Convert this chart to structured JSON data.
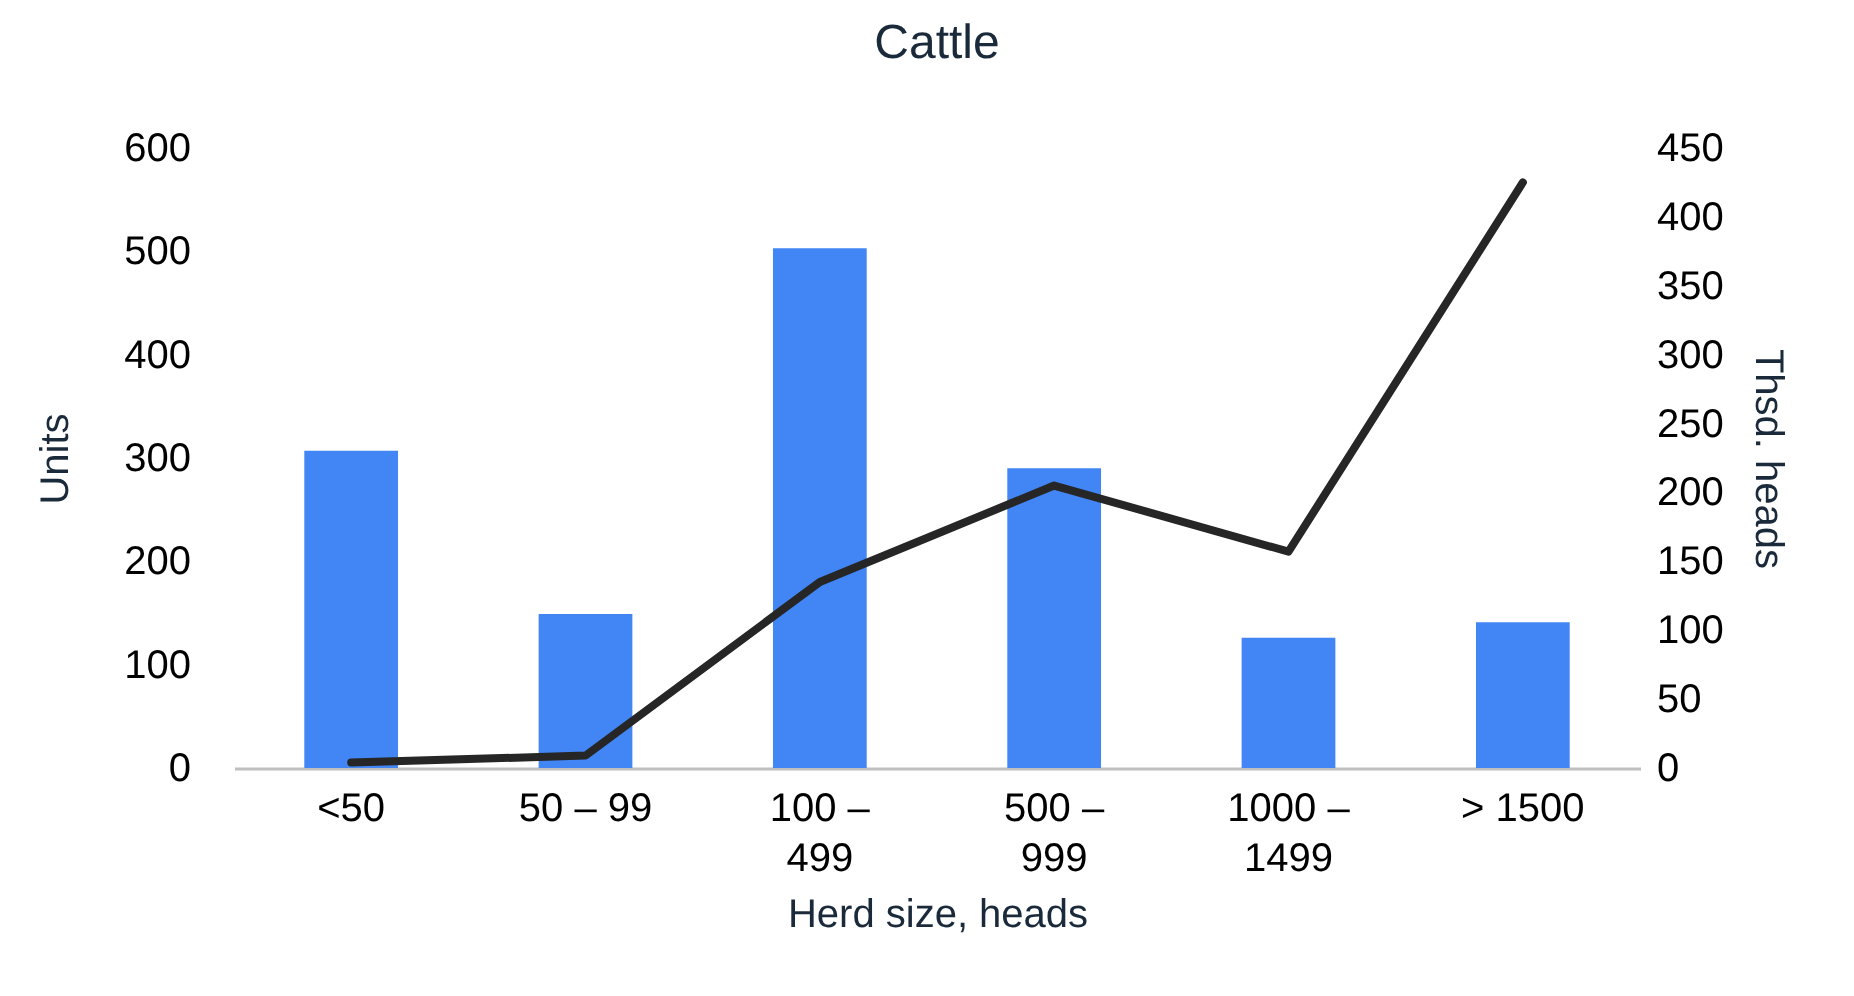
{
  "chart_data": {
    "type": "bar",
    "title": "Cattle",
    "xlabel": "Herd size, heads",
    "ylabel": "Units",
    "y2label": "Thsd. heads",
    "categories": [
      "<50",
      "50 – 99",
      "100 – 499",
      "500 – 999",
      "1000 – 1499",
      "> 1500"
    ],
    "series": [
      {
        "color": "#4285f4",
        "values": [
          307,
          149,
          503,
          290,
          126,
          141
        ]
      },
      {
        "type": "line",
        "axis": "y2",
        "color": "#262626",
        "values": [
          4,
          9,
          135,
          205,
          157,
          425
        ]
      }
    ],
    "ylim": [
      0,
      600
    ],
    "yticks": [
      0,
      100,
      200,
      300,
      400,
      500,
      600
    ],
    "y2lim": [
      0,
      450
    ],
    "y2ticks": [
      0,
      50,
      100,
      150,
      200,
      250,
      300,
      350,
      400,
      450
    ],
    "grid": false,
    "marker": "none",
    "line_style": "solid"
  }
}
